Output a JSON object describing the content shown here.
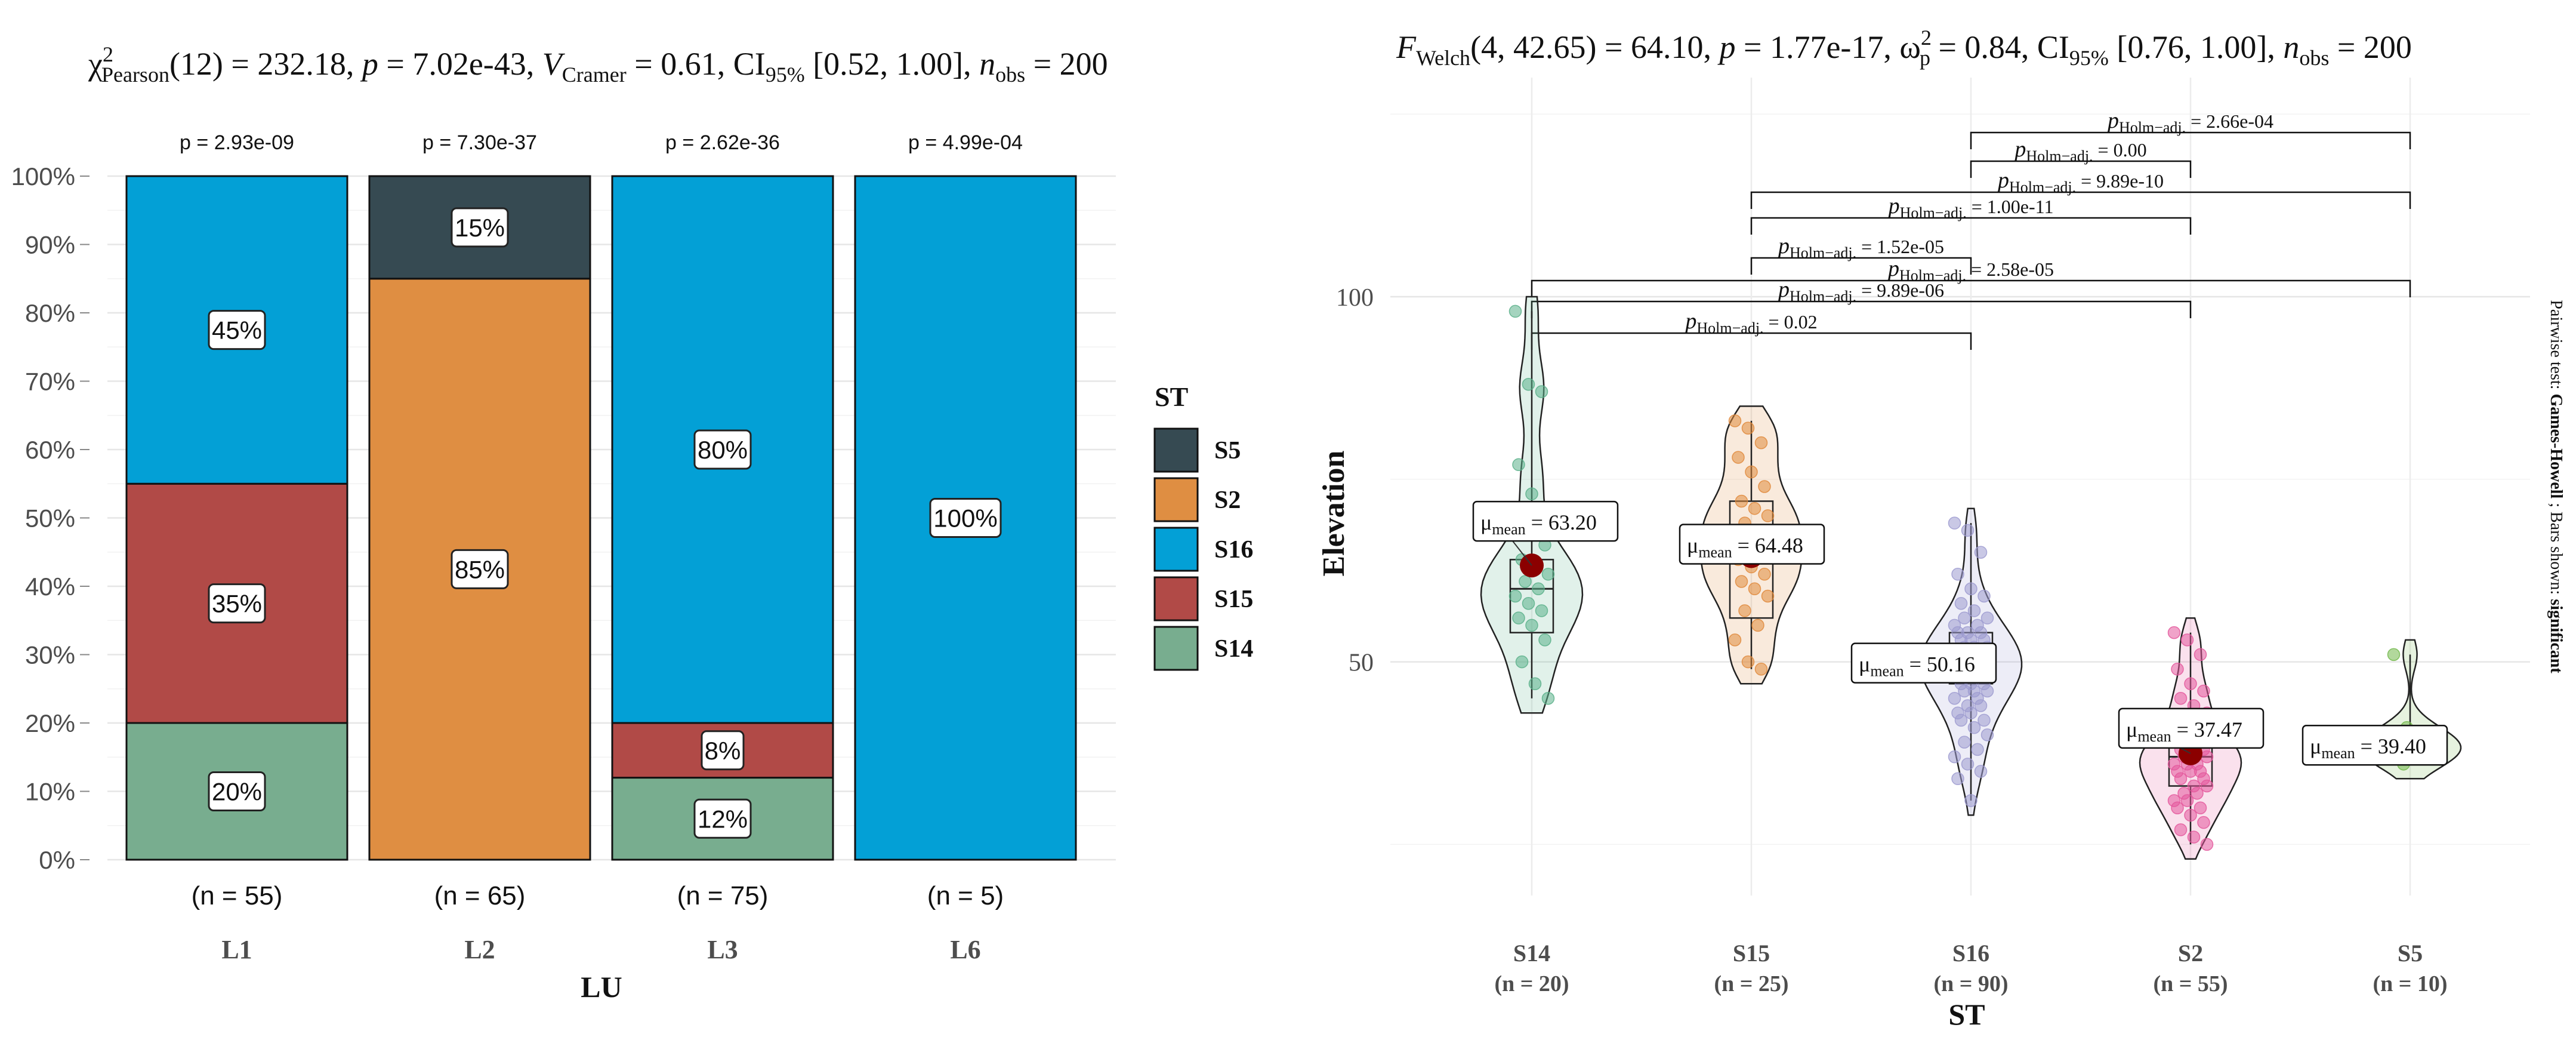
{
  "chart_data": [
    {
      "type": "bar",
      "stacked": true,
      "percent": true,
      "title": "χ²Pearson(12) = 232.18, p = 7.02e-43, V̂Cramer = 0.61, CI95% [0.52, 1.00], nobs = 200",
      "title_parts": {
        "chi": "χ",
        "sup2": "2",
        "pearson_sub": "Pearson",
        "stat_text": "(12) = 232.18, ",
        "p_label": "p",
        "p_text": " = 7.02e-43, ",
        "v_label": "V",
        "hat": "^",
        "cramer_sub": "Cramer",
        "v_text": " = 0.61, CI",
        "ci_sub": "95%",
        "ci_text": " [0.52, 1.00], ",
        "n_label": "n",
        "n_sub": "obs",
        "n_text": " = 200"
      },
      "xlabel": "LU",
      "ylabel": "",
      "categories": [
        "L1",
        "L2",
        "L3",
        "L6"
      ],
      "counts": [
        "(n = 55)",
        "(n = 65)",
        "(n = 75)",
        "(n = 5)"
      ],
      "pvalues": [
        "p = 2.93e-09",
        "p = 7.30e-37",
        "p = 2.62e-36",
        "p = 4.99e-04"
      ],
      "yticks": [
        "0%",
        "10%",
        "20%",
        "30%",
        "40%",
        "50%",
        "60%",
        "70%",
        "80%",
        "90%",
        "100%"
      ],
      "ylim": [
        0,
        100
      ],
      "stack_order": [
        "S14",
        "S15",
        "S16",
        "S2",
        "S5"
      ],
      "series": [
        {
          "name": "S14",
          "color": "#78AD8F",
          "values": [
            20,
            0,
            12,
            0
          ]
        },
        {
          "name": "S15",
          "color": "#B14A47",
          "values": [
            35,
            0,
            8,
            0
          ]
        },
        {
          "name": "S16",
          "color": "#03A0D6",
          "values": [
            45,
            0,
            80,
            100
          ]
        },
        {
          "name": "S2",
          "color": "#DF8E42",
          "values": [
            0,
            85,
            0,
            0
          ]
        },
        {
          "name": "S5",
          "color": "#364A52",
          "values": [
            0,
            15,
            0,
            0
          ]
        }
      ],
      "labels": [
        [
          "20%",
          "35%",
          "45%"
        ],
        [
          "85%",
          "15%"
        ],
        [
          "12%",
          "8%",
          "80%"
        ],
        [
          "100%"
        ]
      ],
      "legend": {
        "title": "ST",
        "position": "right",
        "items": [
          "S5",
          "S2",
          "S16",
          "S15",
          "S14"
        ]
      }
    },
    {
      "type": "violin-box-scatter",
      "title": "FWelch(4, 42.65) = 64.10, p = 1.77e-17, ω̂²p = 0.84, CI95% [0.76, 1.00], nobs = 200",
      "title_parts": {
        "f_label": "F",
        "welch_sub": "Welch",
        "f_text": "(4, 42.65) = 64.10, ",
        "p_label": "p",
        "p_text": " = 1.77e-17, ",
        "omega": "ω",
        "sup2": "2",
        "p_sub": "p",
        "hat": "^",
        "omega_text": " = 0.84, CI",
        "ci_sub": "95%",
        "ci_text": " [0.76, 1.00], ",
        "n_label": "n",
        "n_sub": "obs",
        "n_text": " = 200"
      },
      "xlabel": "ST",
      "ylabel": "Elevation",
      "categories": [
        "S14",
        "S15",
        "S16",
        "S2",
        "S5"
      ],
      "counts": [
        "(n = 20)",
        "(n = 25)",
        "(n = 90)",
        "(n = 55)",
        "(n = 10)"
      ],
      "colors": [
        "#5BB08A",
        "#E08A3C",
        "#9D9BD0",
        "#E4589C",
        "#72B84B"
      ],
      "yticks": [
        50,
        100
      ],
      "ylim": [
        18,
        130
      ],
      "means": [
        63.2,
        64.48,
        50.16,
        37.47,
        39.4
      ],
      "mean_labels": [
        "= 63.20",
        "= 64.48",
        "= 50.16",
        "= 37.47",
        "= 39.40"
      ],
      "mean_symbol": "μ",
      "mean_sub": "mean",
      "boxes": [
        {
          "q1": 54,
          "median": 60,
          "q3": 64,
          "min": 45,
          "max": 98
        },
        {
          "q1": 56,
          "median": 66,
          "q3": 72,
          "min": 49,
          "max": 83
        },
        {
          "q1": 47,
          "median": 51,
          "q3": 54,
          "min": 31,
          "max": 69
        },
        {
          "q1": 33,
          "median": 37,
          "q3": 40,
          "min": 25,
          "max": 54
        },
        {
          "q1": 38,
          "median": 39,
          "q3": 40,
          "min": 36,
          "max": 51
        }
      ],
      "points": [
        [
          98,
          88,
          87,
          77,
          73,
          66,
          64,
          63,
          62,
          61,
          60,
          59,
          58,
          57,
          56,
          55,
          53,
          50,
          47,
          45
        ],
        [
          83,
          82,
          80,
          78,
          76,
          74,
          72,
          71,
          70,
          69,
          68,
          67,
          66,
          65,
          64,
          63,
          62,
          61,
          60,
          59,
          57,
          55,
          53,
          50,
          49
        ],
        [
          69,
          68,
          65,
          62,
          60,
          59,
          58,
          57,
          56,
          56,
          55,
          55,
          54,
          54,
          54,
          53,
          53,
          53,
          52,
          52,
          52,
          51,
          51,
          51,
          51,
          50,
          50,
          50,
          50,
          49,
          49,
          49,
          49,
          48,
          48,
          48,
          48,
          47,
          47,
          47,
          46,
          46,
          46,
          45,
          45,
          44,
          44,
          43,
          43,
          42,
          42,
          41,
          40,
          39,
          38,
          37,
          36,
          35,
          34,
          31
        ],
        [
          54,
          53,
          51,
          49,
          47,
          46,
          45,
          44,
          43,
          42,
          41,
          40,
          40,
          39,
          39,
          38,
          38,
          38,
          37,
          37,
          37,
          36,
          36,
          36,
          35,
          35,
          35,
          34,
          34,
          33,
          33,
          32,
          32,
          31,
          31,
          30,
          30,
          29,
          28,
          27,
          26,
          25
        ],
        [
          51,
          41,
          40,
          39,
          39,
          38,
          38,
          37,
          37,
          36
        ]
      ],
      "pairwise": [
        {
          "from": "S14",
          "to": "S16",
          "label": "= 0.02"
        },
        {
          "from": "S14",
          "to": "S2",
          "label": "= 9.89e-06"
        },
        {
          "from": "S14",
          "to": "S5",
          "label": "= 2.58e-05"
        },
        {
          "from": "S15",
          "to": "S16",
          "label": "= 1.52e-05"
        },
        {
          "from": "S15",
          "to": "S2",
          "label": "= 1.00e-11"
        },
        {
          "from": "S15",
          "to": "S5",
          "label": "= 9.89e-10"
        },
        {
          "from": "S16",
          "to": "S2",
          "label": "= 0.00"
        },
        {
          "from": "S16",
          "to": "S5",
          "label": "= 2.66e-04"
        }
      ],
      "pairwise_label": {
        "p": "p",
        "sub": "Holm−adj."
      },
      "caption": {
        "prefix": "Pairwise test: ",
        "test": "Games-Howell",
        "middle": " ; Bars shown: ",
        "shown": "significant"
      }
    }
  ]
}
